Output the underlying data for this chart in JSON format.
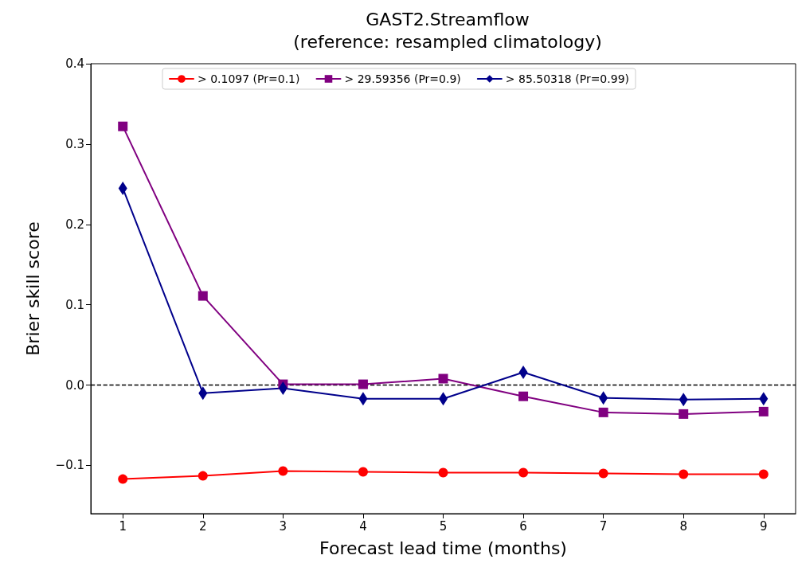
{
  "chart_data": {
    "type": "line",
    "title": "GAST2.Streamflow",
    "subtitle": "(reference: resampled climatology)",
    "xlabel": "Forecast lead time (months)",
    "ylabel": "Brier skill score",
    "x": [
      1,
      2,
      3,
      4,
      5,
      6,
      7,
      8,
      9
    ],
    "series": [
      {
        "name": "> 0.1097 (Pr=0.1)",
        "color": "#ff0000",
        "marker": "circle",
        "values": [
          -0.117,
          -0.113,
          -0.107,
          -0.108,
          -0.109,
          -0.109,
          -0.11,
          -0.111,
          -0.111
        ]
      },
      {
        "name": "> 29.59356 (Pr=0.9)",
        "color": "#800080",
        "marker": "square",
        "values": [
          0.322,
          0.111,
          0.001,
          0.001,
          0.008,
          -0.014,
          -0.034,
          -0.036,
          -0.033
        ]
      },
      {
        "name": "> 85.50318 (Pr=0.99)",
        "color": "#00008b",
        "marker": "diamond",
        "values": [
          0.245,
          -0.01,
          -0.004,
          -0.017,
          -0.017,
          0.016,
          -0.016,
          -0.018,
          -0.017
        ]
      }
    ],
    "xlim": [
      0.6,
      9.4
    ],
    "xticks": [
      1,
      2,
      3,
      4,
      5,
      6,
      7,
      8,
      9
    ],
    "ylim": [
      -0.16,
      0.4
    ],
    "yticks": [
      {
        "value": -0.1,
        "label": "−0.1"
      },
      {
        "value": 0,
        "label": "0.0"
      },
      {
        "value": 0.1,
        "label": "0.1"
      },
      {
        "value": 0.2,
        "label": "0.2"
      },
      {
        "value": 0.3,
        "label": "0.3"
      },
      {
        "value": 0.4,
        "label": "0.4"
      }
    ],
    "ref_lines": [
      {
        "axis": "y",
        "value": 0,
        "color": "#000000",
        "line_style": "dashed"
      }
    ],
    "grid": false,
    "legend": "top",
    "line_style": "solid"
  }
}
